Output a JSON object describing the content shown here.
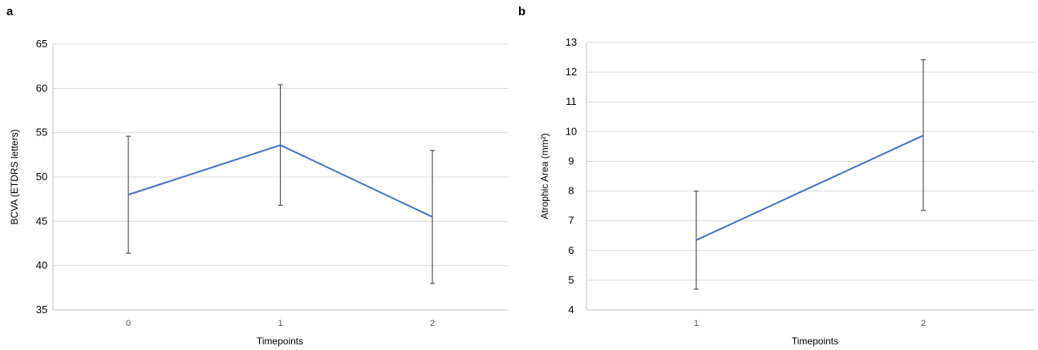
{
  "chart_data": [
    {
      "type": "line",
      "panel_label": "a",
      "categories": [
        "0",
        "1",
        "2"
      ],
      "values": [
        48.0,
        53.6,
        45.5
      ],
      "error_low": [
        41.4,
        46.8,
        38.0
      ],
      "error_high": [
        54.6,
        60.4,
        53.0
      ],
      "ylim": [
        35,
        65
      ],
      "yticks": [
        "35",
        "40",
        "45",
        "50",
        "55",
        "60",
        "65"
      ],
      "xlabel": "Timepoints",
      "ylabel": "BCVA (ETDRS letters)",
      "grid": true,
      "line_color": "#4472C4"
    },
    {
      "type": "line",
      "panel_label": "b",
      "categories": [
        "1",
        "2"
      ],
      "values": [
        6.35,
        9.87
      ],
      "error_low": [
        4.7,
        7.35
      ],
      "error_high": [
        8.0,
        12.42
      ],
      "ylim": [
        4,
        13
      ],
      "yticks": [
        "4",
        "5",
        "6",
        "7",
        "8",
        "9",
        "10",
        "11",
        "12",
        "13"
      ],
      "xlabel": "Timepoints",
      "ylabel": "Atrophic Area (mm²)",
      "grid": true,
      "line_color": "#4472C4"
    }
  ]
}
